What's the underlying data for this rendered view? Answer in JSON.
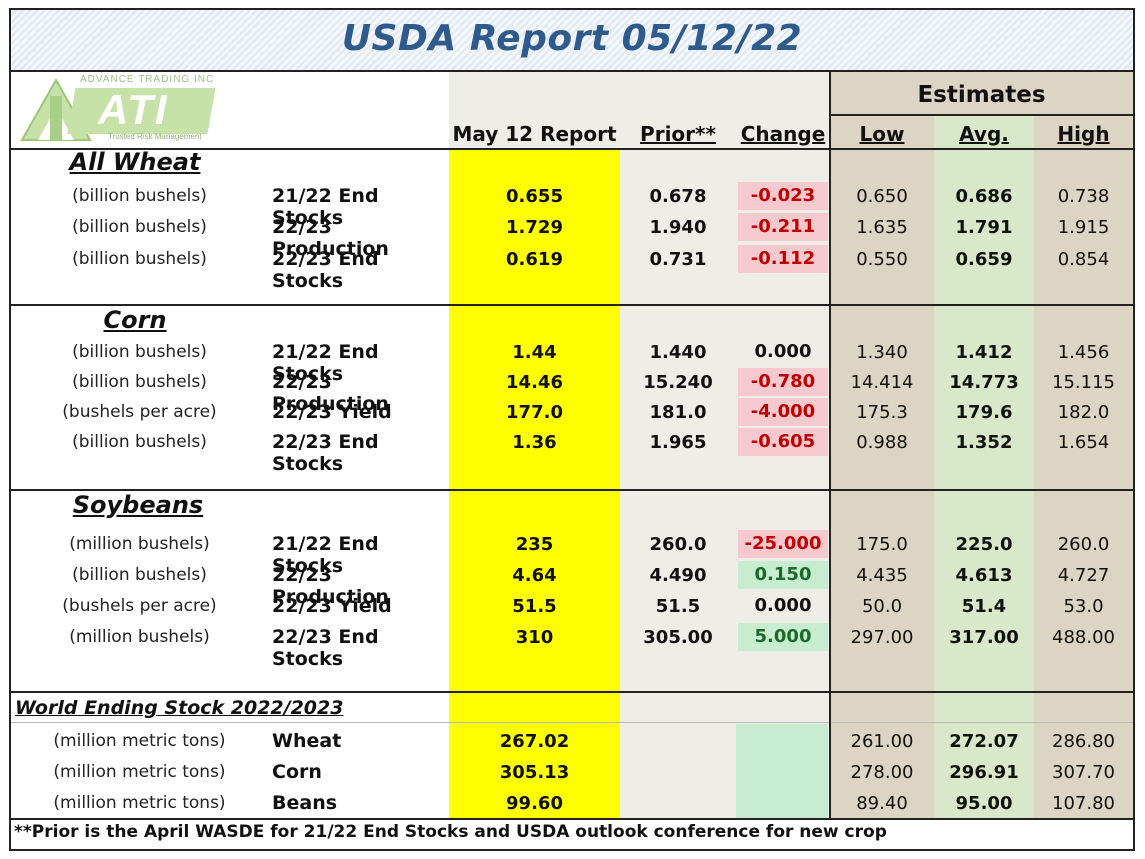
{
  "title": "USDA Report 05/12/22",
  "logo": {
    "top_text": "ADVANCE TRADING INC",
    "main_text": "ATI",
    "sub_text": "Trusted Risk Management"
  },
  "headers": {
    "estimates": "Estimates",
    "report": "May 12 Report",
    "prior": "Prior**",
    "change": "Change",
    "low": "Low",
    "avg": "Avg.",
    "high": "High"
  },
  "wheat": {
    "title": "All Wheat",
    "rows": [
      {
        "unit": "(billion bushels)",
        "label": "21/22 End Stocks",
        "report": "0.655",
        "prior": "0.678",
        "change": "-0.023",
        "change_type": "neg",
        "low": "0.650",
        "avg": "0.686",
        "high": "0.738"
      },
      {
        "unit": "(billion bushels)",
        "label": "22/23 Production",
        "report": "1.729",
        "prior": "1.940",
        "change": "-0.211",
        "change_type": "neg",
        "low": "1.635",
        "avg": "1.791",
        "high": "1.915"
      },
      {
        "unit": "(billion bushels)",
        "label": "22/23 End Stocks",
        "report": "0.619",
        "prior": "0.731",
        "change": "-0.112",
        "change_type": "neg",
        "low": "0.550",
        "avg": "0.659",
        "high": "0.854"
      }
    ]
  },
  "corn": {
    "title": "Corn",
    "rows": [
      {
        "unit": "(billion bushels)",
        "label": "21/22 End Stocks",
        "report": "1.44",
        "prior": "1.440",
        "change": "0.000",
        "change_type": "none",
        "low": "1.340",
        "avg": "1.412",
        "high": "1.456"
      },
      {
        "unit": "(billion bushels)",
        "label": "22/23 Production",
        "report": "14.46",
        "prior": "15.240",
        "change": "-0.780",
        "change_type": "neg",
        "low": "14.414",
        "avg": "14.773",
        "high": "15.115"
      },
      {
        "unit": "(bushels per  acre)",
        "label": "22/23 Yield",
        "report": "177.0",
        "prior": "181.0",
        "change": "-4.000",
        "change_type": "neg",
        "low": "175.3",
        "avg": "179.6",
        "high": "182.0"
      },
      {
        "unit": "(billion bushels)",
        "label": "22/23 End Stocks",
        "report": "1.36",
        "prior": "1.965",
        "change": "-0.605",
        "change_type": "neg",
        "low": "0.988",
        "avg": "1.352",
        "high": "1.654"
      }
    ]
  },
  "soybeans": {
    "title": "Soybeans",
    "rows": [
      {
        "unit": "(million bushels)",
        "label": "21/22 End Stocks",
        "report": "235",
        "prior": "260.0",
        "change": "-25.000",
        "change_type": "neg",
        "low": "175.0",
        "avg": "225.0",
        "high": "260.0"
      },
      {
        "unit": "(billion bushels)",
        "label": "22/23 Production",
        "report": "4.64",
        "prior": "4.490",
        "change": "0.150",
        "change_type": "pos",
        "low": "4.435",
        "avg": "4.613",
        "high": "4.727"
      },
      {
        "unit": "(bushels per  acre)",
        "label": "22/23 Yield",
        "report": "51.5",
        "prior": "51.5",
        "change": "0.000",
        "change_type": "none",
        "low": "50.0",
        "avg": "51.4",
        "high": "53.0"
      },
      {
        "unit": "(million bushels)",
        "label": "22/23 End Stocks",
        "report": "310",
        "prior": "305.00",
        "change": "5.000",
        "change_type": "pos",
        "low": "297.00",
        "avg": "317.00",
        "high": "488.00"
      }
    ]
  },
  "world": {
    "title": "World Ending Stock 2022/2023",
    "rows": [
      {
        "unit": "(million metric tons)",
        "label": "Wheat",
        "report": "267.02",
        "low": "261.00",
        "avg": "272.07",
        "high": "286.80"
      },
      {
        "unit": "(million metric tons)",
        "label": "Corn",
        "report": "305.13",
        "low": "278.00",
        "avg": "296.91",
        "high": "307.70"
      },
      {
        "unit": "(million metric tons)",
        "label": "Beans",
        "report": "99.60",
        "low": "89.40",
        "avg": "95.00",
        "high": "107.80"
      }
    ]
  },
  "footnote": "**Prior is the April WASDE for 21/22 End Stocks and USDA outlook conference for new crop",
  "colors": {
    "title": "#2e5a8c",
    "report_col": "#ffff00",
    "prior_col": "#efede8",
    "estimates_col": "#ddd5c3",
    "avg_col": "#d9e8c9",
    "neg_bg": "#f6c9cf",
    "neg_text": "#c00000",
    "pos_bg": "#c8eccf"
  }
}
